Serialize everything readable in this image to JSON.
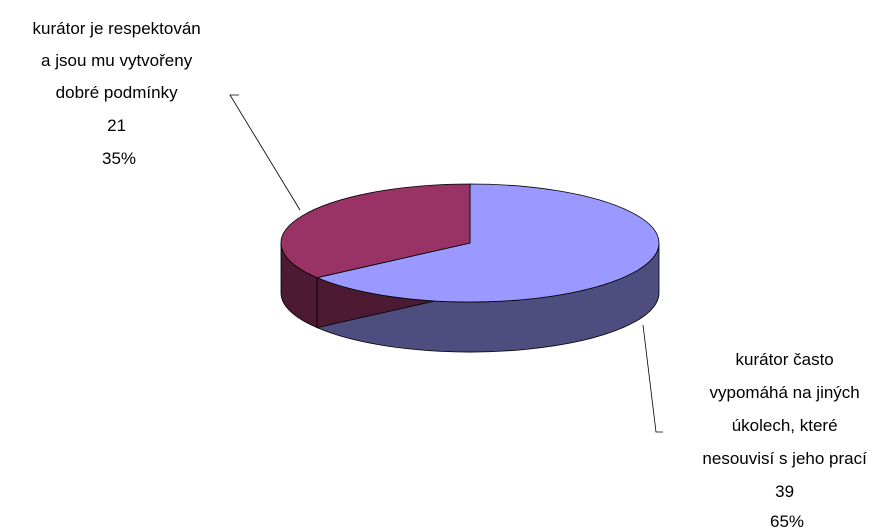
{
  "chart_data": {
    "type": "pie",
    "style": "3d",
    "title": "",
    "legend": "none",
    "slices": [
      {
        "label_lines": [
          "kurátor často",
          "vypomáhá na jiných",
          "úkolech, které",
          "nesouvisí s jeho prací"
        ],
        "value": 39,
        "value_label": "39",
        "percent_label": "65%",
        "top_color": "#9999ff",
        "side_color": "#4d4d80"
      },
      {
        "label_lines": [
          "kurátor je respektován",
          "a jsou mu vytvořeny",
          "dobré podmínky"
        ],
        "value": 21,
        "value_label": "21",
        "percent_label": "35%",
        "top_color": "#993366",
        "side_color": "#4d1a33"
      }
    ]
  }
}
